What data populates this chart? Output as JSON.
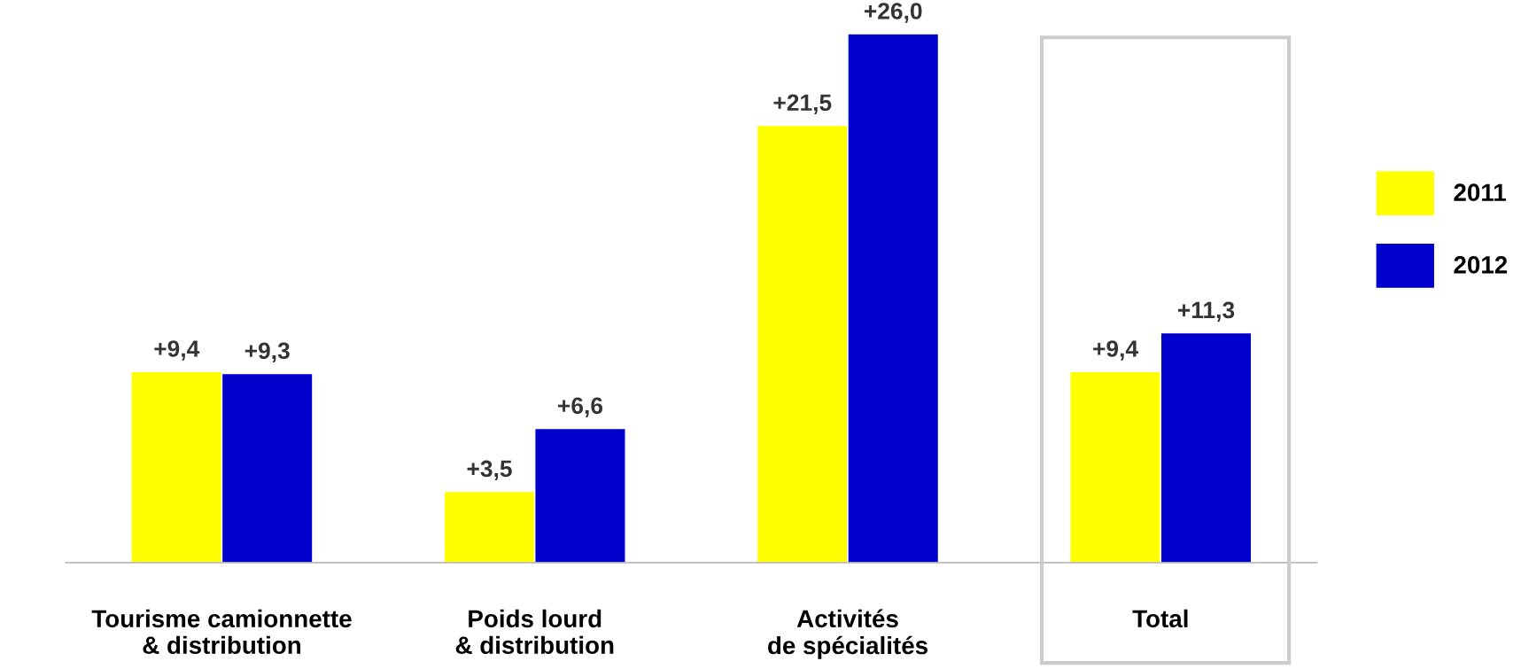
{
  "chart_data": {
    "type": "bar",
    "categories": [
      "Tourisme camionnette\n& distribution",
      "Poids lourd\n& distribution",
      "Activités\nde spécialités",
      "Total"
    ],
    "series": [
      {
        "name": "2011",
        "color": "#ffff00",
        "values": [
          9.4,
          3.5,
          21.5,
          9.4
        ],
        "value_labels": [
          "+9,4",
          "+3,5",
          "+21,5",
          "+9,4"
        ]
      },
      {
        "name": "2012",
        "color": "#0000cc",
        "values": [
          9.3,
          6.6,
          26.0,
          11.3
        ],
        "value_labels": [
          "+9,3",
          "+6,6",
          "+26,0",
          "+11,3"
        ]
      }
    ],
    "tick_labels": "x",
    "grid": false,
    "legend": "right"
  }
}
